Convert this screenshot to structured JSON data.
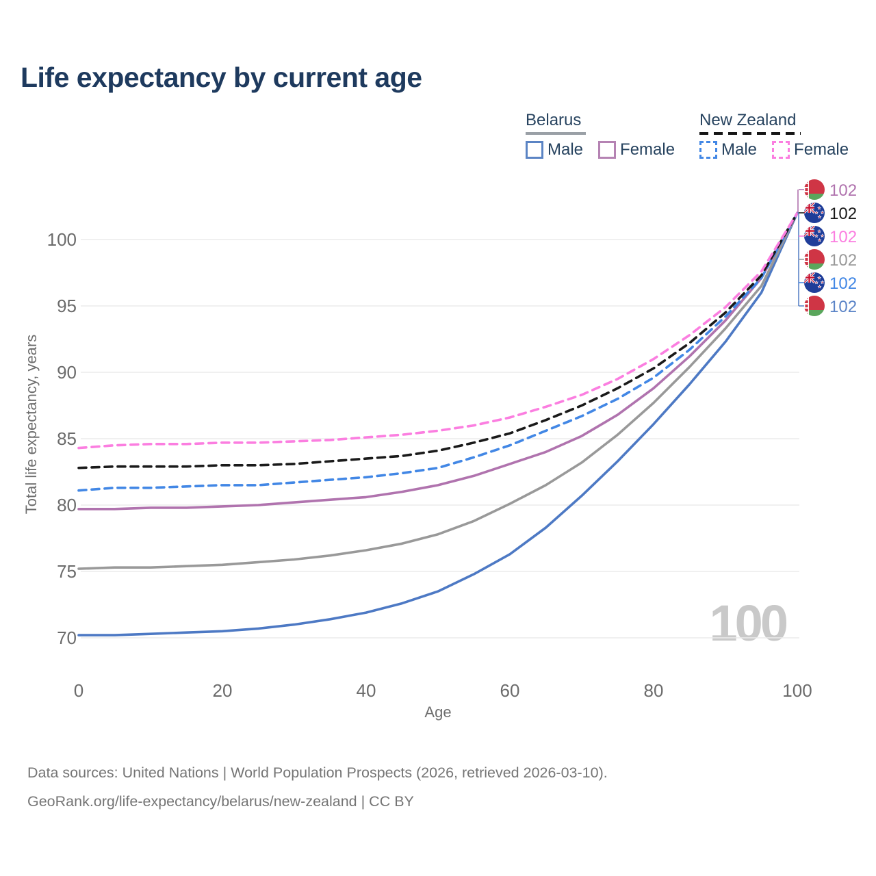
{
  "title": "Life expectancy by current age",
  "legend": {
    "groups": [
      {
        "name": "Belarus",
        "line_style": "solid",
        "underline_color": "#9aa0a6",
        "items": [
          {
            "label": "Male",
            "color": "#5b84c4"
          },
          {
            "label": "Female",
            "color": "#b583b3"
          }
        ]
      },
      {
        "name": "New Zealand",
        "line_style": "dashed",
        "underline_color": "#161616",
        "items": [
          {
            "label": "Male",
            "color": "#4287e5"
          },
          {
            "label": "Female",
            "color": "#fb7ee0"
          }
        ]
      }
    ]
  },
  "chart_data": {
    "type": "line",
    "title": "Life expectancy by current age",
    "xlabel": "Age",
    "ylabel": "Total life expectancy, years",
    "xlim": [
      0,
      100
    ],
    "ylim": [
      68,
      103
    ],
    "xticks": [
      0,
      20,
      40,
      60,
      80,
      100
    ],
    "yticks": [
      70,
      75,
      80,
      85,
      90,
      95,
      100
    ],
    "grid": "horizontal-only",
    "legend_position": "top-right",
    "watermark": "100",
    "x": [
      0,
      5,
      10,
      15,
      20,
      25,
      30,
      35,
      40,
      45,
      50,
      55,
      60,
      65,
      70,
      75,
      80,
      85,
      90,
      95,
      100
    ],
    "series": [
      {
        "id": "belarus_male",
        "name": "Belarus Male",
        "color": "#4d79c4",
        "dash": null,
        "values": [
          70.2,
          70.2,
          70.3,
          70.4,
          70.5,
          70.7,
          71.0,
          71.4,
          71.9,
          72.6,
          73.5,
          74.8,
          76.3,
          78.3,
          80.7,
          83.3,
          86.1,
          89.1,
          92.3,
          96.0,
          102
        ]
      },
      {
        "id": "belarus_both",
        "name": "Belarus",
        "color": "#999999",
        "dash": null,
        "values": [
          75.2,
          75.3,
          75.3,
          75.4,
          75.5,
          75.7,
          75.9,
          76.2,
          76.6,
          77.1,
          77.8,
          78.8,
          80.1,
          81.5,
          83.2,
          85.3,
          87.7,
          90.4,
          93.3,
          96.5,
          102
        ]
      },
      {
        "id": "belarus_female",
        "name": "Belarus Female",
        "color": "#b073ae",
        "dash": null,
        "values": [
          79.7,
          79.7,
          79.8,
          79.8,
          79.9,
          80.0,
          80.2,
          80.4,
          80.6,
          81.0,
          81.5,
          82.2,
          83.1,
          84.0,
          85.2,
          86.8,
          88.8,
          91.2,
          93.9,
          97.1,
          102
        ]
      },
      {
        "id": "nz_male",
        "name": "New Zealand Male",
        "color": "#4287e5",
        "dash": "11 8",
        "values": [
          81.1,
          81.3,
          81.3,
          81.4,
          81.5,
          81.5,
          81.7,
          81.9,
          82.1,
          82.4,
          82.8,
          83.6,
          84.5,
          85.6,
          86.7,
          88.0,
          89.6,
          91.7,
          94.2,
          97.1,
          102
        ]
      },
      {
        "id": "nz_both",
        "name": "New Zealand",
        "color": "#1a1a1a",
        "dash": "11 8",
        "values": [
          82.8,
          82.9,
          82.9,
          82.9,
          83.0,
          83.0,
          83.1,
          83.3,
          83.5,
          83.7,
          84.1,
          84.7,
          85.4,
          86.4,
          87.5,
          88.8,
          90.3,
          92.2,
          94.5,
          97.3,
          102
        ]
      },
      {
        "id": "nz_female",
        "name": "New Zealand Female",
        "color": "#fb7ee0",
        "dash": "11 8",
        "values": [
          84.3,
          84.5,
          84.6,
          84.6,
          84.7,
          84.7,
          84.8,
          84.9,
          85.1,
          85.3,
          85.6,
          86.0,
          86.6,
          87.4,
          88.3,
          89.5,
          91.0,
          92.8,
          94.9,
          97.6,
          102
        ]
      }
    ],
    "end_labels": [
      {
        "series": "belarus_female",
        "flag": "belarus",
        "value": "102",
        "color": "#b073ae"
      },
      {
        "series": "nz_both",
        "flag": "new-zealand",
        "value": "102",
        "color": "#1a1a1a"
      },
      {
        "series": "nz_female",
        "flag": "new-zealand",
        "value": "102",
        "color": "#fb7ee0"
      },
      {
        "series": "belarus_both",
        "flag": "belarus",
        "value": "102",
        "color": "#999999"
      },
      {
        "series": "nz_male",
        "flag": "new-zealand",
        "value": "102",
        "color": "#4287e5"
      },
      {
        "series": "belarus_male",
        "flag": "belarus",
        "value": "102",
        "color": "#5b84c7"
      }
    ]
  },
  "footer": {
    "line1": "Data sources: United Nations | World Population Prospects (2026, retrieved 2026-03-10).",
    "line2": "GeoRank.org/life-expectancy/belarus/new-zealand | CC BY"
  }
}
